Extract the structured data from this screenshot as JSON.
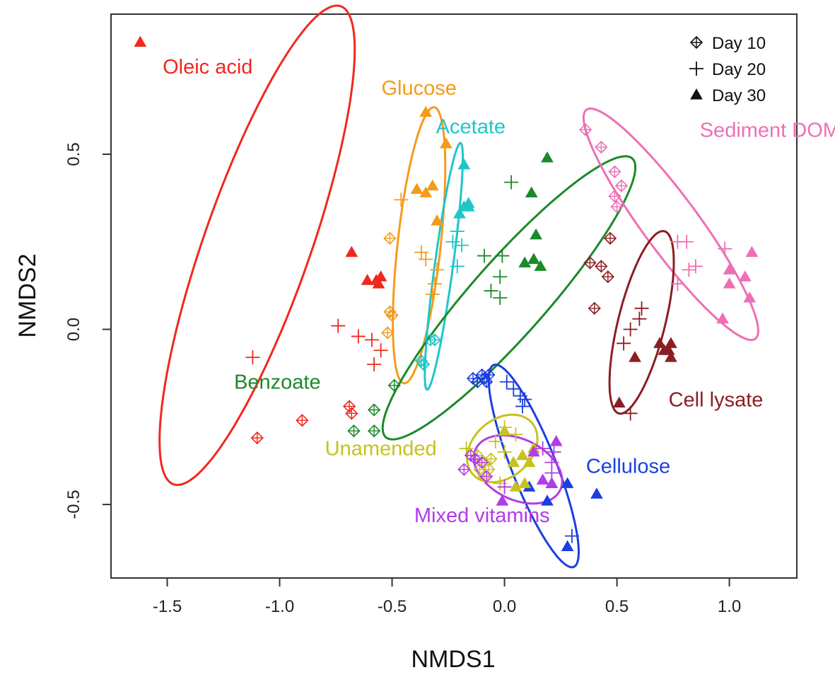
{
  "chart_data": {
    "type": "scatter",
    "title": "",
    "xlabel": "NMDS1",
    "ylabel": "NMDS2",
    "xlim": [
      -1.75,
      1.3
    ],
    "ylim": [
      -0.71,
      0.9
    ],
    "xticks": [
      -1.5,
      -1.0,
      -0.5,
      0.0,
      0.5,
      1.0
    ],
    "xtick_labels": [
      "-1.5",
      "-1.0",
      "-0.5",
      "0.0",
      "0.5",
      "1.0"
    ],
    "yticks": [
      -0.5,
      0.0,
      0.5
    ],
    "ytick_labels": [
      "-0.5",
      "0.0",
      "0.5"
    ],
    "legend": {
      "position": "top-right",
      "entries": [
        {
          "label": "Day 10",
          "marker": "circle-plus"
        },
        {
          "label": "Day 20",
          "marker": "plus"
        },
        {
          "label": "Day 30",
          "marker": "triangle"
        }
      ]
    },
    "groups": [
      {
        "name": "Oleic acid",
        "color": "#f0281e",
        "label_anchor": [
          -1.32,
          0.73
        ],
        "ellipse": {
          "cx": -1.1,
          "cy": 0.24,
          "rx": 0.78,
          "ry": 0.22,
          "angle_deg": 60
        },
        "day10": [
          [
            -1.1,
            -0.31
          ],
          [
            -0.9,
            -0.26
          ],
          [
            -0.69,
            -0.22
          ],
          [
            -0.68,
            -0.24
          ]
        ],
        "day20": [
          [
            -1.12,
            -0.08
          ],
          [
            -0.74,
            0.01
          ],
          [
            -0.65,
            -0.02
          ],
          [
            -0.59,
            -0.03
          ],
          [
            -0.58,
            -0.1
          ],
          [
            -0.55,
            -0.06
          ]
        ],
        "day30": [
          [
            -1.62,
            0.82
          ],
          [
            -0.68,
            0.22
          ],
          [
            -0.61,
            0.14
          ],
          [
            -0.56,
            0.13
          ],
          [
            -0.55,
            0.15
          ],
          [
            -0.57,
            0.14
          ]
        ]
      },
      {
        "name": "Glucose",
        "color": "#f59b1a",
        "label_anchor": [
          -0.38,
          0.67
        ],
        "ellipse": {
          "cx": -0.38,
          "cy": 0.24,
          "rx": 0.4,
          "ry": 0.095,
          "angle_deg": 80
        },
        "day10": [
          [
            -0.51,
            0.26
          ],
          [
            -0.51,
            0.05
          ],
          [
            -0.52,
            -0.01
          ],
          [
            -0.5,
            0.04
          ]
        ],
        "day20": [
          [
            -0.46,
            0.37
          ],
          [
            -0.37,
            0.22
          ],
          [
            -0.35,
            0.2
          ],
          [
            -0.3,
            0.17
          ],
          [
            -0.31,
            0.13
          ],
          [
            -0.32,
            0.1
          ]
        ],
        "day30": [
          [
            -0.35,
            0.62
          ],
          [
            -0.26,
            0.53
          ],
          [
            -0.39,
            0.4
          ],
          [
            -0.35,
            0.39
          ],
          [
            -0.32,
            0.41
          ],
          [
            -0.3,
            0.31
          ]
        ]
      },
      {
        "name": "Acetate",
        "color": "#1fc6c8",
        "label_anchor": [
          -0.15,
          0.56
        ],
        "ellipse": {
          "cx": -0.27,
          "cy": 0.18,
          "rx": 0.36,
          "ry": 0.04,
          "angle_deg": 78
        },
        "day10": [
          [
            -0.33,
            -0.03
          ],
          [
            -0.31,
            -0.03
          ],
          [
            -0.37,
            -0.09
          ],
          [
            -0.36,
            -0.1
          ]
        ],
        "day20": [
          [
            -0.23,
            0.25
          ],
          [
            -0.21,
            0.18
          ],
          [
            -0.19,
            0.24
          ],
          [
            -0.21,
            0.28
          ]
        ],
        "day30": [
          [
            -0.18,
            0.47
          ],
          [
            -0.16,
            0.36
          ],
          [
            -0.18,
            0.35
          ],
          [
            -0.2,
            0.33
          ],
          [
            -0.16,
            0.35
          ]
        ]
      },
      {
        "name": "Benzoate",
        "color": "#1b8a2a",
        "label_anchor": [
          -1.01,
          -0.17
        ],
        "ellipse": {
          "cx": 0.02,
          "cy": 0.09,
          "rx": 0.68,
          "ry": 0.13,
          "angle_deg": 35
        },
        "day10": [
          [
            -0.49,
            -0.16
          ],
          [
            -0.58,
            -0.23
          ],
          [
            -0.67,
            -0.29
          ],
          [
            -0.58,
            -0.29
          ]
        ],
        "day20": [
          [
            0.03,
            0.42
          ],
          [
            -0.09,
            0.21
          ],
          [
            -0.01,
            0.21
          ],
          [
            -0.02,
            0.15
          ],
          [
            -0.06,
            0.11
          ],
          [
            -0.02,
            0.09
          ]
        ],
        "day30": [
          [
            0.19,
            0.49
          ],
          [
            0.12,
            0.39
          ],
          [
            0.14,
            0.27
          ],
          [
            0.13,
            0.2
          ],
          [
            0.09,
            0.19
          ],
          [
            0.16,
            0.18
          ]
        ]
      },
      {
        "name": "Sediment DOM",
        "color": "#ee6fb5",
        "label_anchor": [
          1.18,
          0.55
        ],
        "ellipse": {
          "cx": 0.74,
          "cy": 0.3,
          "rx": 0.5,
          "ry": 0.1,
          "angle_deg": -40
        },
        "day10": [
          [
            0.36,
            0.57
          ],
          [
            0.43,
            0.52
          ],
          [
            0.49,
            0.45
          ],
          [
            0.49,
            0.38
          ],
          [
            0.52,
            0.41
          ],
          [
            0.5,
            0.35
          ]
        ],
        "day20": [
          [
            0.77,
            0.25
          ],
          [
            0.81,
            0.25
          ],
          [
            0.82,
            0.17
          ],
          [
            0.85,
            0.18
          ],
          [
            0.98,
            0.23
          ],
          [
            0.77,
            0.13
          ]
        ],
        "day30": [
          [
            1.1,
            0.22
          ],
          [
            1.0,
            0.17
          ],
          [
            1.07,
            0.15
          ],
          [
            1.0,
            0.13
          ],
          [
            1.09,
            0.09
          ],
          [
            0.97,
            0.03
          ]
        ]
      },
      {
        "name": "Cell lysate",
        "color": "#8b1e22",
        "label_anchor": [
          0.94,
          -0.22
        ],
        "ellipse": {
          "cx": 0.61,
          "cy": 0.02,
          "rx": 0.28,
          "ry": 0.1,
          "angle_deg": 67
        },
        "day10": [
          [
            0.47,
            0.26
          ],
          [
            0.38,
            0.19
          ],
          [
            0.43,
            0.18
          ],
          [
            0.46,
            0.15
          ],
          [
            0.4,
            0.06
          ]
        ],
        "day20": [
          [
            0.61,
            0.06
          ],
          [
            0.6,
            0.03
          ],
          [
            0.56,
            0.0
          ],
          [
            0.53,
            -0.04
          ],
          [
            0.56,
            -0.24
          ]
        ],
        "day30": [
          [
            0.51,
            -0.21
          ],
          [
            0.58,
            -0.08
          ],
          [
            0.69,
            -0.04
          ],
          [
            0.71,
            -0.06
          ],
          [
            0.73,
            -0.06
          ],
          [
            0.74,
            -0.04
          ],
          [
            0.74,
            -0.08
          ]
        ]
      },
      {
        "name": "Cellulose",
        "color": "#1b3fe0",
        "label_anchor": [
          0.55,
          -0.41
        ],
        "ellipse": {
          "cx": 0.13,
          "cy": -0.39,
          "rx": 0.34,
          "ry": 0.09,
          "angle_deg": -57
        },
        "day10": [
          [
            -0.07,
            -0.13
          ],
          [
            -0.1,
            -0.13
          ],
          [
            -0.09,
            -0.14
          ],
          [
            -0.14,
            -0.14
          ],
          [
            -0.12,
            -0.15
          ],
          [
            -0.08,
            -0.15
          ]
        ],
        "day20": [
          [
            0.01,
            -0.15
          ],
          [
            0.04,
            -0.17
          ],
          [
            0.07,
            -0.19
          ],
          [
            0.09,
            -0.2
          ],
          [
            0.08,
            -0.22
          ],
          [
            0.3,
            -0.59
          ]
        ],
        "day30": [
          [
            0.41,
            -0.47
          ],
          [
            0.28,
            -0.44
          ],
          [
            0.21,
            -0.44
          ],
          [
            0.19,
            -0.49
          ],
          [
            0.11,
            -0.45
          ],
          [
            0.28,
            -0.62
          ]
        ]
      },
      {
        "name": "Unamended",
        "color": "#c6c21f",
        "label_anchor": [
          -0.55,
          -0.36
        ],
        "ellipse": {
          "cx": -0.01,
          "cy": -0.34,
          "rx": 0.16,
          "ry": 0.09,
          "angle_deg": 15
        },
        "day10": [
          [
            -0.12,
            -0.36
          ],
          [
            -0.09,
            -0.38
          ],
          [
            -0.06,
            -0.37
          ],
          [
            -0.07,
            -0.4
          ],
          [
            -0.11,
            -0.4
          ],
          [
            -0.09,
            -0.42
          ]
        ],
        "day20": [
          [
            -0.17,
            -0.34
          ],
          [
            -0.04,
            -0.32
          ],
          [
            0.0,
            -0.28
          ],
          [
            0.05,
            -0.3
          ],
          [
            0.0,
            -0.35
          ],
          [
            -0.02,
            -0.44
          ]
        ],
        "day30": [
          [
            0.0,
            -0.29
          ],
          [
            0.08,
            -0.36
          ],
          [
            0.04,
            -0.38
          ],
          [
            0.13,
            -0.34
          ],
          [
            0.11,
            -0.38
          ],
          [
            0.05,
            -0.45
          ],
          [
            0.09,
            -0.44
          ]
        ]
      },
      {
        "name": "Mixed vitamins",
        "color": "#b43be8",
        "label_anchor": [
          -0.1,
          -0.55
        ],
        "ellipse": {
          "cx": 0.06,
          "cy": -0.4,
          "rx": 0.2,
          "ry": 0.09,
          "angle_deg": -12
        },
        "day10": [
          [
            -0.18,
            -0.4
          ],
          [
            -0.15,
            -0.36
          ],
          [
            -0.13,
            -0.37
          ],
          [
            -0.1,
            -0.38
          ],
          [
            -0.08,
            -0.42
          ]
        ],
        "day20": [
          [
            0.17,
            -0.34
          ],
          [
            0.22,
            -0.35
          ],
          [
            0.21,
            -0.38
          ],
          [
            0.21,
            -0.41
          ],
          [
            0.0,
            -0.45
          ]
        ],
        "day30": [
          [
            -0.01,
            -0.49
          ],
          [
            0.13,
            -0.35
          ],
          [
            0.23,
            -0.32
          ],
          [
            0.17,
            -0.43
          ],
          [
            0.21,
            -0.44
          ]
        ]
      }
    ]
  }
}
